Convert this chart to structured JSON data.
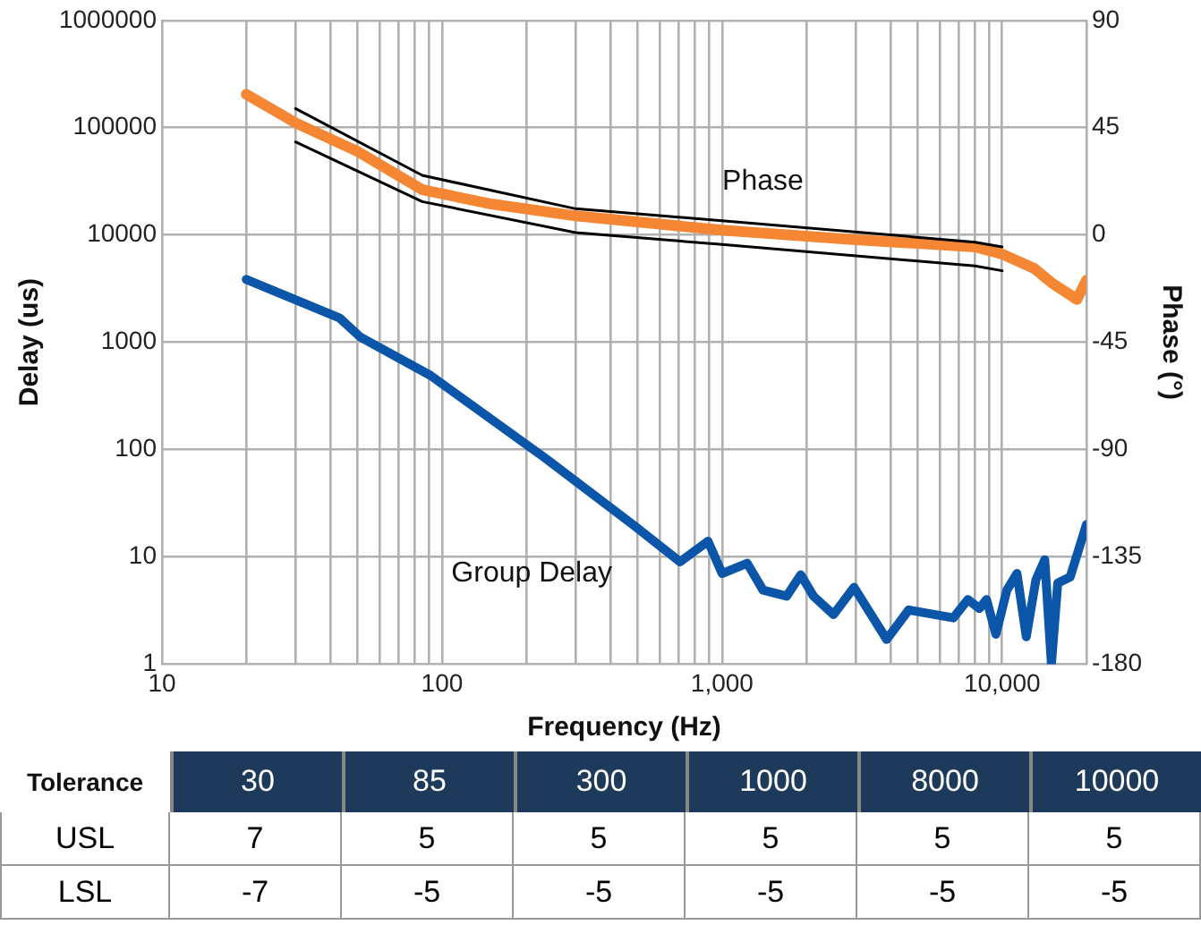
{
  "chart_data": [
    {
      "type": "line",
      "xlabel": "Frequency (Hz)",
      "ylabel": "Delay (us)",
      "y2label": "Phase (°)",
      "log": "xy",
      "grid": true,
      "line_style": "solid",
      "xlim": [
        10,
        20000
      ],
      "xticks": [
        10,
        {
          "value": 20,
          "label": null
        },
        {
          "value": 30,
          "label": null
        },
        {
          "value": 40,
          "label": null
        },
        {
          "value": 50,
          "label": null
        },
        {
          "value": 60,
          "label": null
        },
        {
          "value": 70,
          "label": null
        },
        {
          "value": 80,
          "label": null
        },
        {
          "value": 90,
          "label": null
        },
        100,
        {
          "value": 200,
          "label": null
        },
        {
          "value": 300,
          "label": null
        },
        {
          "value": 400,
          "label": null
        },
        {
          "value": 500,
          "label": null
        },
        {
          "value": 600,
          "label": null
        },
        {
          "value": 700,
          "label": null
        },
        {
          "value": 800,
          "label": null
        },
        {
          "value": 900,
          "label": null
        },
        {
          "value": 1000,
          "label": "1,000"
        },
        {
          "value": 2000,
          "label": null
        },
        {
          "value": 3000,
          "label": null
        },
        {
          "value": 4000,
          "label": null
        },
        {
          "value": 5000,
          "label": null
        },
        {
          "value": 6000,
          "label": null
        },
        {
          "value": 7000,
          "label": null
        },
        {
          "value": 8000,
          "label": null
        },
        {
          "value": 9000,
          "label": null
        },
        {
          "value": 10000,
          "label": "10,000"
        },
        {
          "value": 20000,
          "label": null
        }
      ],
      "ylim": [
        1,
        1000000
      ],
      "yticks": [
        1,
        10,
        100,
        1000,
        10000,
        100000,
        1000000
      ],
      "y2lim": [
        -180,
        90
      ],
      "y2ticks": [
        -180,
        -135,
        -90,
        -45,
        0,
        45,
        90
      ],
      "series": [
        {
          "name": "Group Delay",
          "color": "#0b56a8",
          "x": [
            20,
            43,
            51,
            91,
            234,
            484,
            708,
            891,
            1000,
            1230,
            1400,
            1700,
            1910,
            2120,
            2500,
            2960,
            3870,
            4640,
            6700,
            7550,
            8300,
            8800,
            9500,
            10400,
            11300,
            12200,
            13200,
            14200,
            15000,
            15800,
            17500,
            20000
          ],
          "values": [
            3850,
            1690,
            1120,
            490,
            83,
            19.7,
            9,
            14,
            7,
            8.7,
            4.9,
            4.3,
            6.8,
            4.3,
            2.9,
            5.2,
            1.7,
            3.2,
            2.7,
            4,
            3.3,
            4,
            1.9,
            4.9,
            7,
            1.8,
            6.1,
            9.4,
            1,
            5.7,
            6.5,
            20
          ]
        },
        {
          "name": "Phase",
          "color": "#f58634",
          "axis": "y2",
          "x": [
            20,
            30,
            50,
            85,
            150,
            300,
            1000,
            3000,
            8000,
            10000,
            13000,
            15000,
            18500,
            20000
          ],
          "values": [
            59,
            47,
            35,
            19,
            13,
            8,
            2,
            -2,
            -5,
            -8,
            -14,
            -20,
            -27,
            -19
          ]
        },
        {
          "color": "#000000",
          "axis": "y2",
          "x": [
            30,
            85,
            300,
            1000,
            8000,
            10000
          ],
          "values": [
            53,
            25,
            11,
            6,
            -3,
            -5
          ]
        },
        {
          "color": "#000000",
          "axis": "y2",
          "x": [
            30,
            85,
            300,
            1000,
            8000,
            10000
          ],
          "values": [
            39,
            14,
            1,
            -4,
            -13,
            -15
          ]
        }
      ]
    },
    {
      "type": "heatmap",
      "title": "Tolerance",
      "categories": [
        "30",
        "85",
        "300",
        "1000",
        "8000",
        "10000"
      ],
      "y_categories": [
        "USL",
        "LSL"
      ],
      "data_labels": true,
      "cells": [
        [
          7,
          5,
          5,
          5,
          5,
          5
        ],
        [
          -7,
          -5,
          -5,
          -5,
          -5,
          -5
        ]
      ]
    }
  ]
}
